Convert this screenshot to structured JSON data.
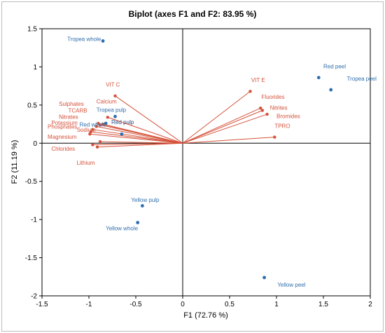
{
  "chart_data": {
    "type": "scatter",
    "title": "Biplot (axes F1 and F2: 83.95 %)",
    "xlabel": "F1 (72.76 %)",
    "ylabel": "F2 (11.19 %)",
    "xlim": [
      -1.5,
      2
    ],
    "ylim": [
      -2,
      1.5
    ],
    "xticks": [
      -1.5,
      -1,
      -0.5,
      0,
      0.5,
      1,
      1.5,
      2
    ],
    "yticks": [
      -2,
      -1.5,
      -1,
      -0.5,
      0,
      0.5,
      1,
      1.5
    ],
    "xtick_labels": [
      "-1.5",
      "-1",
      "-0.5",
      "0",
      "0.5",
      "1",
      "1.5",
      "2"
    ],
    "ytick_labels": [
      "-2",
      "-1.5",
      "-1",
      "-0.5",
      "0",
      "0.5",
      "1",
      "1.5"
    ],
    "grid": false,
    "colors": {
      "variables": "#d4523a",
      "observations": "#2f6fae"
    },
    "variables": [
      {
        "name": "VIT C",
        "x": -0.72,
        "y": 0.62,
        "lx": -0.82,
        "ly": 0.74
      },
      {
        "name": "VIT E",
        "x": 0.72,
        "y": 0.68,
        "lx": 0.73,
        "ly": 0.8
      },
      {
        "name": "Calcium",
        "x": -0.8,
        "y": 0.34,
        "lx": -0.92,
        "ly": 0.52
      },
      {
        "name": "Sulphates",
        "x": -0.9,
        "y": 0.26,
        "lx": -1.32,
        "ly": 0.49
      },
      {
        "name": "TCARB",
        "x": -0.85,
        "y": 0.25,
        "lx": -1.22,
        "ly": 0.4
      },
      {
        "name": "Nitrates",
        "x": -0.88,
        "y": 0.24,
        "lx": -1.32,
        "ly": 0.32
      },
      {
        "name": "Potassium",
        "x": -0.92,
        "y": 0.22,
        "lx": -1.4,
        "ly": 0.24
      },
      {
        "name": "Phosphates",
        "x": -0.96,
        "y": 0.18,
        "lx": -1.44,
        "ly": 0.19
      },
      {
        "name": "Sodium",
        "x": -0.98,
        "y": 0.15,
        "lx": -1.13,
        "ly": 0.15
      },
      {
        "name": "Magnesium",
        "x": -0.99,
        "y": 0.12,
        "lx": -1.44,
        "ly": 0.06
      },
      {
        "name": "Chlorides",
        "x": -0.96,
        "y": -0.02,
        "lx": -1.4,
        "ly": -0.1
      },
      {
        "name": "Lithium",
        "x": -0.91,
        "y": -0.05,
        "lx": -1.13,
        "ly": -0.28
      },
      {
        "name": "Red pulp",
        "x": -0.88,
        "y": 0.02,
        "lx": -0.76,
        "ly": 0.25
      },
      {
        "name": "Fluorides",
        "x": 0.83,
        "y": 0.46,
        "lx": 0.84,
        "ly": 0.58
      },
      {
        "name": "Nitrites",
        "x": 0.85,
        "y": 0.43,
        "lx": 0.93,
        "ly": 0.44
      },
      {
        "name": "Bromides",
        "x": 0.9,
        "y": 0.38,
        "lx": 1.0,
        "ly": 0.33
      },
      {
        "name": "TPRO",
        "x": 0.98,
        "y": 0.08,
        "lx": 0.98,
        "ly": 0.2
      }
    ],
    "observations": [
      {
        "name": "Tropea whole",
        "x": -0.85,
        "y": 1.34,
        "lx": -1.23,
        "ly": 1.34
      },
      {
        "name": "Tropea pulp",
        "x": -0.72,
        "y": 0.35,
        "lx": -0.92,
        "ly": 0.41
      },
      {
        "name": "Red whole",
        "x": -0.82,
        "y": 0.26,
        "lx": -1.1,
        "ly": 0.22
      },
      {
        "name": "Red pulp",
        "x": -0.65,
        "y": 0.12,
        "lx": -0.76,
        "ly": 0.25
      },
      {
        "name": "Red peel",
        "x": 1.45,
        "y": 0.86,
        "lx": 1.5,
        "ly": 0.98
      },
      {
        "name": "Tropea peel",
        "x": 1.58,
        "y": 0.7,
        "lx": 1.75,
        "ly": 0.82
      },
      {
        "name": "Yellow pulp",
        "x": -0.43,
        "y": -0.82,
        "lx": -0.55,
        "ly": -0.77
      },
      {
        "name": "Yellow whole",
        "x": -0.48,
        "y": -1.04,
        "lx": -0.82,
        "ly": -1.14
      },
      {
        "name": "Yellow peel",
        "x": 0.87,
        "y": -1.76,
        "lx": 1.01,
        "ly": -1.88
      }
    ]
  }
}
